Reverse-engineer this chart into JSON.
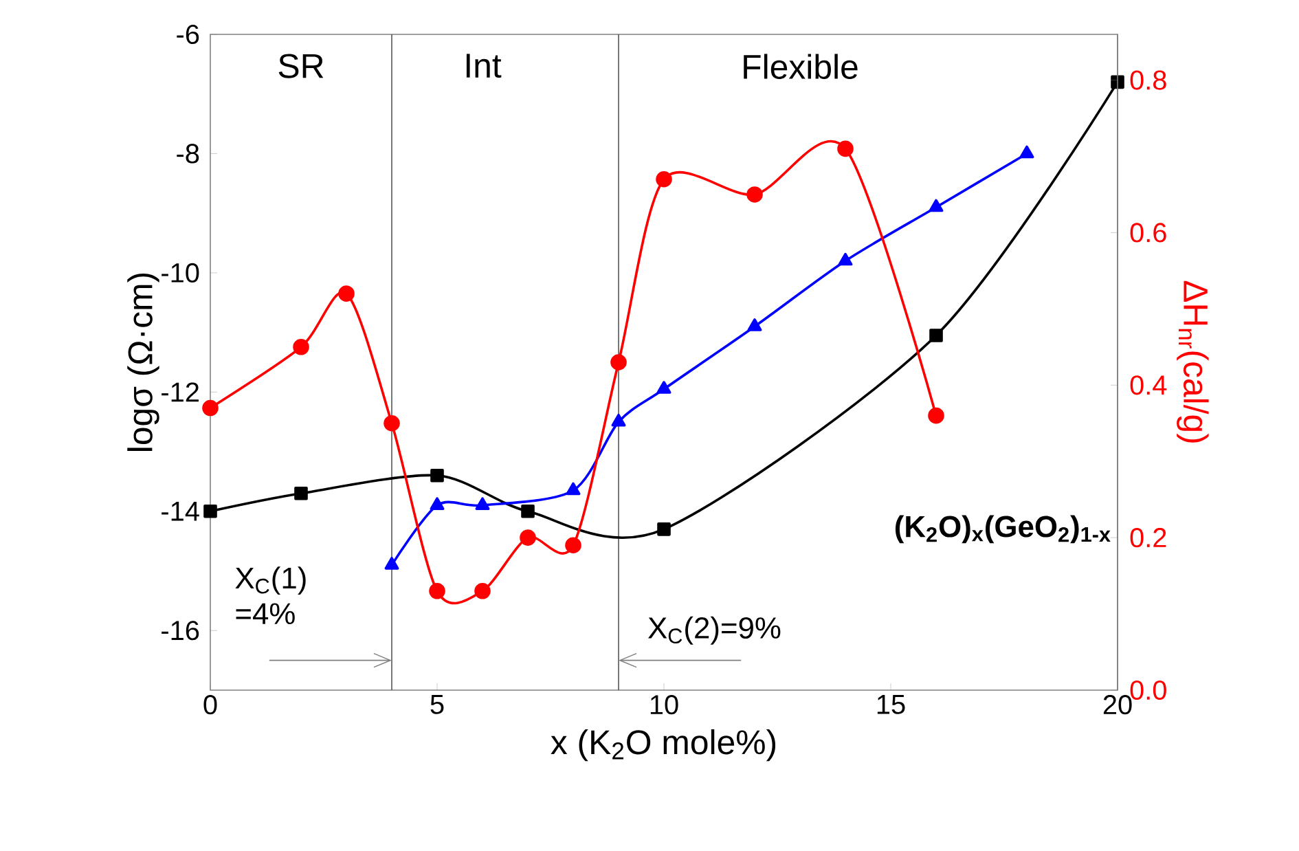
{
  "chart_data": {
    "type": "line",
    "xlabel": "x (K$_{2}$O mole%)",
    "ylabel": "logσ (Ω·cm)",
    "y2label": "ΔH$_{nr}$(cal/g)",
    "xlim": [
      0,
      20
    ],
    "xticks": [
      0,
      5,
      10,
      15,
      20
    ],
    "ylim": [
      -17,
      -6
    ],
    "yticks": [
      -16,
      -14,
      -12,
      -10,
      -8,
      -6
    ],
    "y2lim": [
      0,
      0.86
    ],
    "y2ticks": [
      {
        "value": 0,
        "label": "0.0"
      },
      0.2,
      0.4,
      0.6,
      0.8
    ],
    "series": [
      {
        "color": "#000000",
        "marker": "square",
        "x": [
          0,
          2,
          5,
          7,
          10,
          16,
          20
        ],
        "values": [
          -14.0,
          -13.7,
          -13.4,
          -14.0,
          -14.3,
          -11.05,
          -6.8
        ]
      },
      {
        "color": "#0000ff",
        "marker": "triangle",
        "x": [
          4,
          5,
          6,
          8,
          9,
          10,
          12,
          14,
          16,
          18
        ],
        "values": [
          -14.9,
          -13.9,
          -13.9,
          -13.65,
          -12.5,
          -11.95,
          -10.9,
          -9.8,
          -8.9,
          -8.0
        ]
      },
      {
        "color": "#ff0000",
        "marker": "circle",
        "axis": "y2",
        "x": [
          0,
          2,
          3,
          4,
          5,
          6,
          7,
          8,
          9,
          10,
          12,
          14,
          16
        ],
        "values": [
          0.37,
          0.45,
          0.52,
          0.35,
          0.13,
          0.13,
          0.2,
          0.19,
          0.43,
          0.67,
          0.65,
          0.71,
          0.36
        ]
      }
    ],
    "ref_lines": [
      {
        "axis": "x",
        "value": 4,
        "color": "#555555"
      },
      {
        "axis": "x",
        "value": 9,
        "color": "#555555"
      }
    ],
    "annotations": [
      "SR",
      "Int",
      "Flexible",
      "(K$_{2}$O)$_{x}$(GeO$_{2}$)$_{1-x}$",
      {
        "text": "X$_{C}$(1) =4%",
        "x": 4,
        "y": -16.5
      },
      {
        "text": "X$_{C}$(2)=9%",
        "x": 9,
        "y": -16.5
      }
    ]
  }
}
